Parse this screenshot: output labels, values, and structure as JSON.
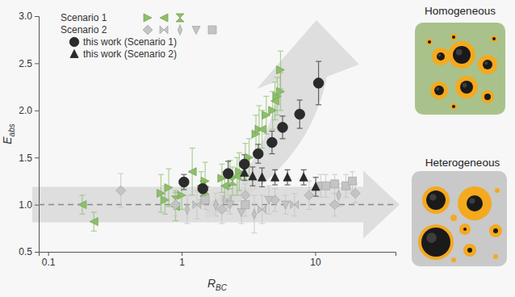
{
  "chart_data": {
    "type": "scatter",
    "x_label": {
      "text": "R",
      "subscript": "BC"
    },
    "y_label": {
      "text": "E",
      "subscript": "abs"
    },
    "log": "x",
    "legend": "upper left",
    "xlim": [
      0.085,
      40
    ],
    "xticks": [
      0.1,
      1,
      10
    ],
    "ylim": [
      0.5,
      3.0
    ],
    "yticks": [
      0.5,
      {
        "value": 1.0,
        "label": "1.0"
      },
      1.5,
      {
        "value": 2.0,
        "label": "2.0"
      },
      2.5,
      {
        "value": 3.0,
        "label": "3.0"
      }
    ],
    "reference_line": 1,
    "annotations": [
      "Homogeneous",
      "Heterogeneous"
    ],
    "series": [
      {
        "name": "Scenario 1",
        "color": "#8dbf6a",
        "marker": "triangle-right",
        "x": [
          0.7,
          0.75,
          0.8,
          1.0,
          1.5,
          2.0,
          2.3,
          2.7,
          3.2,
          3.6,
          3.8,
          4.3,
          4.8,
          5.2,
          5.5,
          5.5
        ],
        "values": [
          1.12,
          1.05,
          1.18,
          1.1,
          1.25,
          1.28,
          1.32,
          1.35,
          1.5,
          1.75,
          1.8,
          1.95,
          2.0,
          2.15,
          2.2,
          2.43
        ],
        "errors": [
          0.2,
          0.15,
          0.2,
          0.15,
          0.2,
          0.15,
          0.15,
          0.2,
          0.2,
          0.2,
          0.25,
          0.2,
          0.2,
          0.2,
          0.2,
          0.2
        ]
      },
      {
        "name": "Scenario 1",
        "color": "#8dbf6a",
        "marker": "triangle-left",
        "x": [
          0.18,
          0.22,
          0.9,
          1.2,
          1.4,
          2.1,
          2.6,
          3.0,
          4.0,
          5.0
        ],
        "values": [
          1.0,
          0.82,
          0.98,
          1.35,
          1.2,
          1.2,
          1.3,
          1.45,
          1.8,
          2.1
        ],
        "errors": [
          0.1,
          0.1,
          0.15,
          0.25,
          0.15,
          0.15,
          0.2,
          0.2,
          0.2,
          0.2
        ]
      },
      {
        "name": "Scenario 1",
        "color": "#8dbf6a",
        "marker": "hourglass",
        "x": [
          0.9,
          1.5,
          2.4
        ],
        "values": [
          1.05,
          1.15,
          1.25
        ],
        "errors": [
          0.1,
          0.1,
          0.15
        ]
      },
      {
        "name": "Scenario 2",
        "color": "#c4c4c4",
        "marker": "diamond",
        "x": [
          0.35,
          0.9,
          2.0,
          3.0,
          5.0,
          9.0,
          14,
          20
        ],
        "values": [
          1.15,
          1.0,
          0.95,
          1.1,
          1.05,
          1.1,
          1.0,
          1.12
        ],
        "errors": [
          0.18,
          0.12,
          0.15,
          0.12,
          0.12,
          0.15,
          0.12,
          0.1
        ]
      },
      {
        "name": "Scenario 2",
        "color": "#c4c4c4",
        "marker": "bowtie",
        "x": [
          1.3,
          2.2,
          4.0,
          7.0
        ],
        "values": [
          1.0,
          1.05,
          0.95,
          1.0
        ],
        "errors": [
          0.15,
          0.12,
          0.15,
          0.12
        ]
      },
      {
        "name": "Scenario 2",
        "color": "#c4c4c4",
        "marker": "thin-diamond",
        "x": [
          1.1,
          1.8,
          3.5,
          15
        ],
        "values": [
          0.95,
          1.0,
          0.9,
          1.1
        ],
        "errors": [
          0.15,
          0.12,
          0.2,
          0.12
        ]
      },
      {
        "name": "Scenario 2",
        "color": "#c4c4c4",
        "marker": "triangle-down",
        "x": [
          2.3,
          2.8,
          4.5,
          6.0,
          11
        ],
        "values": [
          1.0,
          0.92,
          1.05,
          1.0,
          1.2
        ],
        "errors": [
          0.1,
          0.12,
          0.15,
          0.1,
          0.12
        ]
      },
      {
        "name": "Scenario 2",
        "color": "#c4c4c4",
        "marker": "square",
        "x": [
          1.5,
          3.0,
          12,
          14,
          17,
          19
        ],
        "values": [
          1.05,
          1.0,
          1.2,
          1.22,
          1.2,
          1.25
        ],
        "errors": [
          0.1,
          0.12,
          0.12,
          0.1,
          0.12,
          0.1
        ]
      },
      {
        "name": "this work (Scenario 1)",
        "color": "#2b2b2b",
        "marker": "circle",
        "x": [
          1.04,
          1.44,
          2.23,
          2.95,
          3.74,
          4.75,
          5.7,
          7.66,
          10.6
        ],
        "values": [
          1.24,
          1.17,
          1.33,
          1.43,
          1.54,
          1.66,
          1.82,
          1.96,
          2.29
        ],
        "errors": [
          0.08,
          0.08,
          0.13,
          0.1,
          0.1,
          0.12,
          0.12,
          0.15,
          0.23
        ]
      },
      {
        "name": "this work (Scenario 2)",
        "color": "#2b2b2b",
        "marker": "triangle-up",
        "x": [
          2.95,
          3.4,
          4.0,
          5.0,
          6.2,
          8.2,
          10.1
        ],
        "values": [
          1.34,
          1.3,
          1.29,
          1.29,
          1.29,
          1.29,
          1.19
        ],
        "errors": [
          0.08,
          0.1,
          0.1,
          0.08,
          0.08,
          0.08,
          0.1
        ]
      }
    ]
  }
}
